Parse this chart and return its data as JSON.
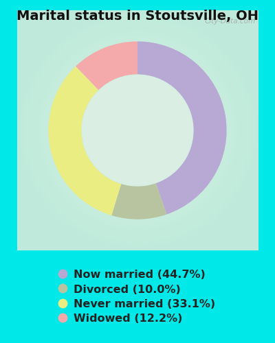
{
  "title": "Marital status in Stoutsville, OH",
  "slices": [
    {
      "label": "Now married (44.7%)",
      "value": 44.7,
      "color": "#b8a8d4"
    },
    {
      "label": "Divorced (10.0%)",
      "value": 10.0,
      "color": "#b8c4a0"
    },
    {
      "label": "Never married (33.1%)",
      "value": 33.1,
      "color": "#eaed82"
    },
    {
      "label": "Widowed (12.2%)",
      "value": 12.2,
      "color": "#f4aaaa"
    }
  ],
  "background_outer": "#00e8e8",
  "background_chart": "#d4ede0",
  "donut_hole_ratio": 0.62,
  "title_fontsize": 14,
  "legend_fontsize": 11.5,
  "watermark": "City-Data.com",
  "start_angle": 90
}
